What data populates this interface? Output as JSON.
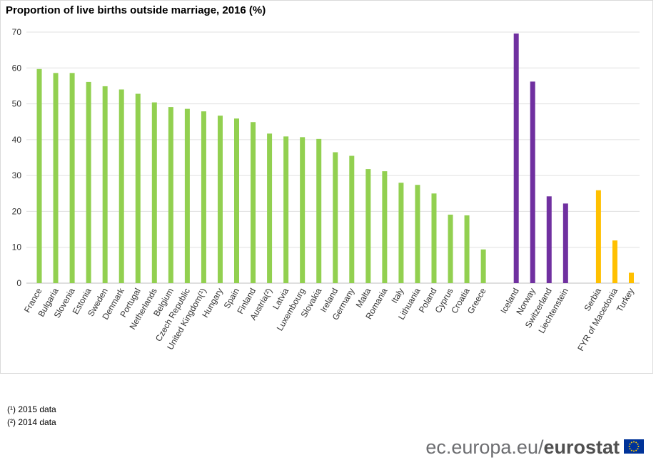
{
  "chart_data": {
    "type": "bar",
    "title": "Proportion of live births outside marriage, 2016 (%)",
    "categories": [
      "France",
      "Bulgaria",
      "Slovenia",
      "Estonia",
      "Sweden",
      "Denmark",
      "Portugal",
      "Netherlands",
      "Belgium",
      "Czech Republic",
      "United Kingdom(¹)",
      "Hungary",
      "Spain",
      "Finland",
      "Austria(²)",
      "Latvia",
      "Luxembourg",
      "Slovakia",
      "Ireland",
      "Germany",
      "Malta",
      "Romania",
      "Italy",
      "Lithuania",
      "Poland",
      "Cyprus",
      "Croatia",
      "Greece",
      null,
      "Iceland",
      "Norway",
      "Switzerland",
      "Liechtenstein",
      null,
      "Serbia",
      "FYR of Macedonia",
      "Turkey"
    ],
    "values": [
      59.7,
      58.6,
      58.6,
      56.1,
      54.9,
      54.0,
      52.8,
      50.4,
      49.1,
      48.6,
      47.9,
      46.7,
      45.9,
      44.9,
      41.7,
      40.9,
      40.7,
      40.2,
      36.5,
      35.5,
      31.8,
      31.2,
      28.0,
      27.4,
      25.0,
      19.1,
      18.9,
      9.4,
      null,
      69.6,
      56.2,
      24.2,
      22.2,
      null,
      25.9,
      11.9,
      2.9
    ],
    "colors": [
      "#92d050",
      "#92d050",
      "#92d050",
      "#92d050",
      "#92d050",
      "#92d050",
      "#92d050",
      "#92d050",
      "#92d050",
      "#92d050",
      "#92d050",
      "#92d050",
      "#92d050",
      "#92d050",
      "#92d050",
      "#92d050",
      "#92d050",
      "#92d050",
      "#92d050",
      "#92d050",
      "#92d050",
      "#92d050",
      "#92d050",
      "#92d050",
      "#92d050",
      "#92d050",
      "#92d050",
      "#92d050",
      null,
      "#7030a0",
      "#7030a0",
      "#7030a0",
      "#7030a0",
      null,
      "#ffc000",
      "#ffc000",
      "#ffc000"
    ],
    "ylim": [
      0,
      70
    ],
    "yticks": [
      0,
      10,
      20,
      30,
      40,
      50,
      60,
      70
    ],
    "grid": true
  },
  "notes": [
    "(¹) 2015 data",
    "(²) 2014 data"
  ],
  "footer": {
    "site": "ec.europa.eu/",
    "brand": "eurostat"
  }
}
